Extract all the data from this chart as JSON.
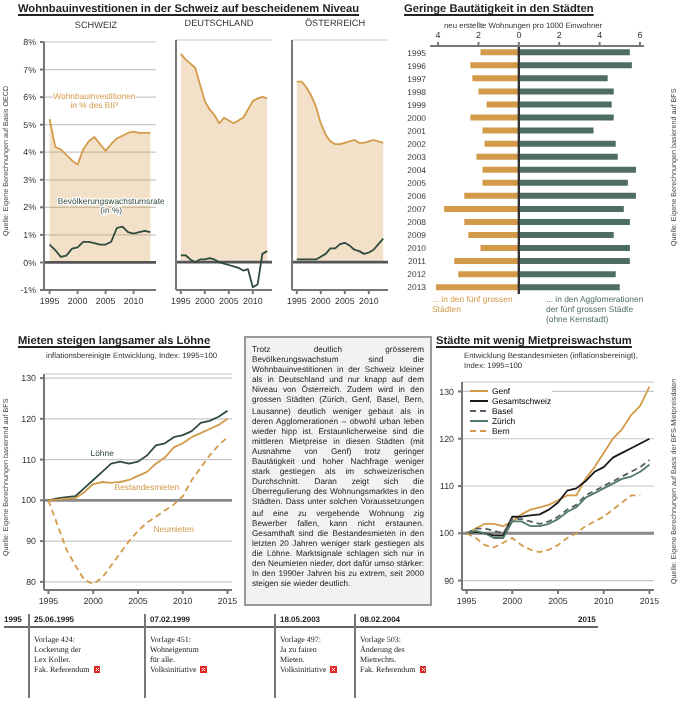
{
  "chart_data": [
    {
      "type": "line",
      "title": "Wohnbauinvestitionen in der Schweiz auf bescheidenem Niveau",
      "subtitle": "SCHWEIZ",
      "annotations": [
        "Quelle: Eigene Berechnungen auf Basis OECD"
      ],
      "x": [
        1995,
        1996,
        1997,
        1998,
        1999,
        2000,
        2001,
        2002,
        2003,
        2004,
        2005,
        2006,
        2007,
        2008,
        2009,
        2010,
        2011,
        2012,
        2013
      ],
      "xlim": [
        1994,
        2014
      ],
      "xticks": [
        1995,
        2000,
        2005,
        2010
      ],
      "ylim": [
        -1,
        8
      ],
      "yticks": [
        {
          "value": -1,
          "label": "-1%"
        },
        {
          "value": 0,
          "label": "0%"
        },
        {
          "value": 1,
          "label": "1%"
        },
        {
          "value": 2,
          "label": "2%"
        },
        {
          "value": 3,
          "label": "3%"
        },
        {
          "value": 4,
          "label": "4%"
        },
        {
          "value": 5,
          "label": "5%"
        },
        {
          "value": 6,
          "label": "6%"
        },
        {
          "value": 7,
          "label": "7%"
        },
        {
          "value": 8,
          "label": "8%"
        }
      ],
      "grid": "y",
      "legend": false,
      "ref_lines": [
        {
          "axis": "y",
          "value": 0,
          "color": "#555555"
        }
      ],
      "series": [
        {
          "type": "area",
          "name": "Wohnbauinvestitionen in % des BIP",
          "color": "#d39a4a",
          "values": [
            5.2,
            4.2,
            4.1,
            3.9,
            3.7,
            3.55,
            4.1,
            4.4,
            4.55,
            4.3,
            4.05,
            4.3,
            4.5,
            4.6,
            4.7,
            4.75,
            4.7,
            4.7,
            4.7
          ]
        },
        {
          "name": "Bevölkerungswachstumsrate (in %)",
          "color": "#2f4a3e",
          "values": [
            0.65,
            0.45,
            0.2,
            0.25,
            0.5,
            0.55,
            0.75,
            0.75,
            0.7,
            0.65,
            0.65,
            0.75,
            1.25,
            1.3,
            1.1,
            1.05,
            1.1,
            1.15,
            1.1
          ]
        }
      ]
    },
    {
      "type": "line",
      "subtitle": "DEUTSCHLAND",
      "tick_labels": "x",
      "x": [
        1995,
        1996,
        1997,
        1998,
        1999,
        2000,
        2001,
        2002,
        2003,
        2004,
        2005,
        2006,
        2007,
        2008,
        2009,
        2010,
        2011,
        2012,
        2013
      ],
      "xlim": [
        1994,
        2014
      ],
      "xticks": [
        1995,
        2000,
        2005,
        2010
      ],
      "ylim": [
        -1,
        8
      ],
      "yticks": [
        -1,
        0,
        1,
        2,
        3,
        4,
        5,
        6,
        7,
        8
      ],
      "grid": "y",
      "legend": false,
      "ref_lines": [
        {
          "axis": "y",
          "value": 0,
          "color": "#555555"
        }
      ],
      "series": [
        {
          "type": "area",
          "color": "#d39a4a",
          "values": [
            7.5,
            7.3,
            7.15,
            7.0,
            6.4,
            5.8,
            5.5,
            5.3,
            5.0,
            5.2,
            5.1,
            5.0,
            5.1,
            5.2,
            5.5,
            5.8,
            5.9,
            5.95,
            5.9
          ]
        },
        {
          "color": "#2f4a3e",
          "values": [
            0.25,
            0.25,
            0.1,
            0.0,
            0.1,
            0.1,
            0.15,
            0.1,
            0.0,
            -0.05,
            -0.1,
            -0.15,
            -0.2,
            -0.3,
            -0.25,
            -0.9,
            -0.8,
            0.3,
            0.4
          ]
        }
      ]
    },
    {
      "type": "line",
      "subtitle": "ÖSTERREICH",
      "tick_labels": "x",
      "x": [
        1995,
        1996,
        1997,
        1998,
        1999,
        2000,
        2001,
        2002,
        2003,
        2004,
        2005,
        2006,
        2007,
        2008,
        2009,
        2010,
        2011,
        2012,
        2013
      ],
      "xlim": [
        1994,
        2014
      ],
      "xticks": [
        1995,
        2000,
        2005,
        2010
      ],
      "ylim": [
        -1,
        8
      ],
      "yticks": [
        -1,
        0,
        1,
        2,
        3,
        4,
        5,
        6,
        7,
        8
      ],
      "grid": "y",
      "legend": false,
      "ref_lines": [
        {
          "axis": "y",
          "value": 0,
          "color": "#555555"
        }
      ],
      "series": [
        {
          "type": "area",
          "color": "#d39a4a",
          "values": [
            6.5,
            6.5,
            6.3,
            6.0,
            5.6,
            5.0,
            4.6,
            4.35,
            4.25,
            4.25,
            4.3,
            4.35,
            4.4,
            4.3,
            4.3,
            4.35,
            4.4,
            4.35,
            4.3
          ]
        },
        {
          "color": "#2f4a3e",
          "values": [
            0.1,
            0.1,
            0.1,
            0.1,
            0.1,
            0.2,
            0.3,
            0.5,
            0.5,
            0.65,
            0.7,
            0.6,
            0.45,
            0.4,
            0.3,
            0.35,
            0.45,
            0.65,
            0.85
          ]
        }
      ]
    },
    {
      "type": "bar",
      "orientation": "horizontal",
      "stacked": true,
      "title": "Geringe Bautätigkeit in den Städten",
      "xlabel": "neu erstellte Wohnungen pro 1000 Einwohner",
      "annotations": [
        "Quelle: Eigene Berechnungen basierend auf BFS"
      ],
      "categories": [
        "1995",
        "1996",
        "1997",
        "1998",
        "1999",
        "2000",
        "2001",
        "2002",
        "2003",
        "2004",
        "2005",
        "2006",
        "2007",
        "2008",
        "2009",
        "2010",
        "2011",
        "2012",
        "2013"
      ],
      "xlim": [
        -4.4,
        6.2
      ],
      "xticks": [
        {
          "value": -4,
          "label": "4"
        },
        {
          "value": -2,
          "label": "2"
        },
        {
          "value": 0,
          "label": "0"
        },
        2,
        4,
        6
      ],
      "legend": "bottom",
      "ref_lines": [
        {
          "axis": "x",
          "value": 0,
          "color": "#333333"
        }
      ],
      "series": [
        {
          "name": "... in den fünf grossen Städten",
          "color": "#d39a4a",
          "values": [
            -1.9,
            -2.4,
            -2.3,
            -2.0,
            -1.6,
            -2.4,
            -1.8,
            -1.7,
            -2.1,
            -1.8,
            -1.8,
            -2.7,
            -3.7,
            -2.7,
            -2.5,
            -1.9,
            -3.2,
            -3.0,
            -4.1
          ]
        },
        {
          "name": "... in den Agglomerationen der fünf grossen Städte (ohne Kernstadt)",
          "color": "#4f6e62",
          "values": [
            5.5,
            5.6,
            4.4,
            4.7,
            4.6,
            4.7,
            3.7,
            4.8,
            4.9,
            5.8,
            5.4,
            5.8,
            5.2,
            5.5,
            4.7,
            5.5,
            5.5,
            4.8,
            5.0
          ]
        }
      ]
    },
    {
      "type": "line",
      "title": "Mieten steigen langsamer als Löhne",
      "subtitle": "inflationsbereinigte Entwicklung, Index: 1995=100",
      "annotations": [
        "Quelle: Eigene Berechnungen basierend auf BFS"
      ],
      "x": [
        1995,
        1996,
        1997,
        1998,
        1999,
        2000,
        2001,
        2002,
        2003,
        2004,
        2005,
        2006,
        2007,
        2008,
        2009,
        2010,
        2011,
        2012,
        2013,
        2014,
        2015
      ],
      "xlim": [
        1994.5,
        2015.5
      ],
      "xticks": [
        1995,
        2000,
        2005,
        2010,
        2015
      ],
      "ylim": [
        78,
        131
      ],
      "yticks": [
        80,
        90,
        100,
        110,
        120,
        130
      ],
      "grid": "y",
      "legend": false,
      "ref_lines": [
        {
          "axis": "y",
          "value": 100,
          "color": "#888888"
        }
      ],
      "series": [
        {
          "name": "Löhne",
          "color": "#2f4a3e",
          "line_style": "solid",
          "values": [
            100,
            100.5,
            100.8,
            101,
            103,
            105,
            107,
            109,
            109.5,
            109,
            109.5,
            111,
            113.5,
            114,
            115.5,
            116,
            117,
            119,
            119.5,
            120.5,
            122
          ]
        },
        {
          "name": "Bestandesmieten",
          "color": "#d39a4a",
          "line_style": "solid",
          "values": [
            100,
            100.2,
            100.4,
            100.5,
            102,
            104,
            104.5,
            104.3,
            104.5,
            105,
            106,
            107,
            109,
            110.5,
            113,
            114,
            115.5,
            116.5,
            117.5,
            118.5,
            120
          ]
        },
        {
          "name": "Neumieten",
          "color": "#d39a4a",
          "line_style": "dashed",
          "values": [
            100,
            94,
            88,
            84,
            80.5,
            79.5,
            81,
            84,
            87,
            90,
            92.5,
            94.5,
            96,
            97.5,
            99,
            101,
            105,
            108,
            111,
            113.5,
            115.5
          ]
        }
      ]
    },
    {
      "type": "other",
      "annotations": [
        "Trotz deutlich grösserem Bevölkerungswachstum sind die Wohnbauinvestitionen in der Schweiz kleiner als in Deutschland und nur knapp auf dem Niveau von Österreich. Zudem wird in den grossen Städten (Zürich, Genf, Basel, Bern, Lausanne) deutlich weniger gebaut als in deren Agglomerationen – obwohl urban leben wieder hipp ist. Erstaunlicherweise sind die mittleren Mietpreise in diesen Städten (mit Ausnahme von Genf) trotz geringer Bautätigkeit und hoher Nachfrage weniger stark gestiegen als im schweizerischen Durchschnitt. Daran zeigt sich die Überregulierung des Wohnungsmarktes in den Städten. Dass unter solchen Voraussetzungen auf eine zu vergebende Wohnung zig Bewerber fallen, kann nicht erstaunen. Gesamthaft sind die Bestandesmieten in den letzten 20 Jahren weniger stark gestiegen als die Löhne. Marktsignale schlagen sich nur in den Neumieten nieder, dort dafür umso stärker: In den 1990er Jahren bis zu extrem, seit 2000 steigen sie wieder deutlich."
      ]
    },
    {
      "type": "line",
      "title": "Städte mit wenig Mietpreiswachstum",
      "subtitle": "Entwicklung Bestandesmieten (inflationsbereinigt), Index: 1995=100",
      "annotations": [
        "Quelle: Eigene Berechnungen auf Basis der BFS-Mietpreisdaten"
      ],
      "x": [
        1995,
        1996,
        1997,
        1998,
        1999,
        2000,
        2001,
        2002,
        2003,
        2004,
        2005,
        2006,
        2007,
        2008,
        2009,
        2010,
        2011,
        2012,
        2013,
        2014,
        2015
      ],
      "xlim": [
        1994.5,
        2015.5
      ],
      "xticks": [
        1995,
        2000,
        2005,
        2010,
        2015
      ],
      "ylim": [
        88,
        132
      ],
      "yticks": [
        90,
        100,
        110,
        120,
        130
      ],
      "grid": "y",
      "legend": "top left",
      "ref_lines": [
        {
          "axis": "y",
          "value": 100,
          "color": "#888888"
        }
      ],
      "series": [
        {
          "name": "Genf",
          "color": "#d39a4a",
          "line_style": "solid",
          "values": [
            100,
            101,
            102,
            102,
            101.5,
            102.5,
            104,
            105,
            105.5,
            106,
            107,
            108,
            108,
            111.5,
            114,
            117,
            120,
            122,
            125,
            127,
            131
          ]
        },
        {
          "name": "Gesamtschweiz",
          "color": "#1a1a1a",
          "line_style": "solid",
          "values": [
            100,
            100.3,
            100,
            99.5,
            99.5,
            103.5,
            103.5,
            103.8,
            104,
            105,
            106.5,
            109,
            109.5,
            111,
            113,
            114,
            116,
            117,
            118,
            119,
            120
          ]
        },
        {
          "name": "Basel",
          "color": "#55606a",
          "line_style": "dashed",
          "values": [
            100,
            101,
            101,
            100.5,
            100,
            103,
            103,
            102.5,
            102,
            102.5,
            103.5,
            105,
            106,
            108,
            109,
            110,
            111,
            112,
            113,
            114,
            115.5
          ]
        },
        {
          "name": "Zürich",
          "color": "#4f7a6a",
          "line_style": "solid",
          "values": [
            100,
            100.5,
            100,
            99,
            99,
            102.5,
            102.5,
            101.5,
            101.5,
            102,
            103,
            104.5,
            105.5,
            107.5,
            108.5,
            109.5,
            110.5,
            111.5,
            112,
            113,
            114.5
          ]
        },
        {
          "name": "Bern",
          "color": "#d39a4a",
          "line_style": "dashed",
          "values": [
            100,
            99,
            97.5,
            97,
            98,
            99,
            97.5,
            96.5,
            96,
            96.5,
            97.5,
            99,
            100,
            101.5,
            102.5,
            103.5,
            105,
            106.5,
            108,
            108,
            null
          ]
        }
      ]
    },
    {
      "type": "other",
      "annotations": [
        "1995",
        "25.06.1995",
        "Vorlage 424:\nLockerung der\nLex Koller.\nFak. Referendum",
        "07.02.1999",
        "Vorlage 451:\nWohneigentum\nfür alle.\nVolksinitiative",
        "18.05.2003",
        "Vorlage 497:\nJa zu fairen\nMieten.\nVolksinitiative",
        "08.02.2004",
        "Vorlage 503:\nÄnderung des\nMietrechts.\nFak. Referendum",
        "2015"
      ]
    }
  ]
}
